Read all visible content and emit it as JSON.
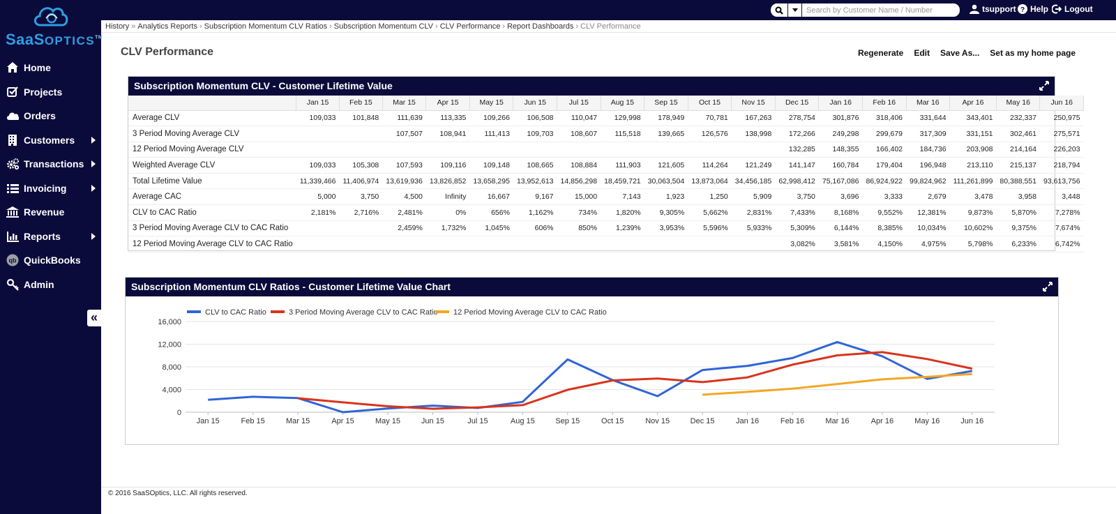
{
  "brand": {
    "name_big": "SaaS",
    "name_small": "OPTICS",
    "tm": "TM"
  },
  "sidebar": {
    "items": [
      {
        "label": "Home",
        "icon": "home-icon",
        "arrow": false
      },
      {
        "label": "Projects",
        "icon": "checkbox-icon",
        "arrow": false
      },
      {
        "label": "Orders",
        "icon": "cloud-icon",
        "arrow": false
      },
      {
        "label": "Customers",
        "icon": "building-icon",
        "arrow": true
      },
      {
        "label": "Transactions",
        "icon": "gears-icon",
        "arrow": true
      },
      {
        "label": "Invoicing",
        "icon": "list-icon",
        "arrow": true
      },
      {
        "label": "Revenue",
        "icon": "bank-icon",
        "arrow": false
      },
      {
        "label": "Reports",
        "icon": "bar-chart-icon",
        "arrow": true
      },
      {
        "label": "QuickBooks",
        "icon": "quickbooks-icon",
        "arrow": false
      },
      {
        "label": "Admin",
        "icon": "key-icon",
        "arrow": false
      }
    ],
    "collapse_glyph": "«"
  },
  "topbar": {
    "search_placeholder": "Search by Customer Name / Number",
    "user": "tsupport",
    "help": "Help",
    "logout": "Logout"
  },
  "breadcrumb": {
    "items": [
      "History",
      "Analytics Reports",
      "Subscription Momentum CLV Ratios",
      "Subscription Momentum CLV",
      "CLV Performance",
      "Report Dashboards"
    ],
    "current": "CLV Performance"
  },
  "page": {
    "title": "CLV Performance",
    "actions": [
      "Regenerate",
      "Edit",
      "Save As...",
      "Set as my home page"
    ]
  },
  "table_panel": {
    "title": "Subscription Momentum CLV - Customer Lifetime Value",
    "columns": [
      "Jan 15",
      "Feb 15",
      "Mar 15",
      "Apr 15",
      "May 15",
      "Jun 15",
      "Jul 15",
      "Aug 15",
      "Sep 15",
      "Oct 15",
      "Nov 15",
      "Dec 15",
      "Jan 16",
      "Feb 16",
      "Mar 16",
      "Apr 16",
      "May 16",
      "Jun 16"
    ],
    "rows": [
      {
        "label": "Average CLV",
        "values": [
          "109,033",
          "101,848",
          "111,639",
          "113,335",
          "109,266",
          "106,508",
          "110,047",
          "129,998",
          "178,949",
          "70,781",
          "167,263",
          "278,754",
          "301,876",
          "318,406",
          "331,644",
          "343,401",
          "232,337",
          "250,975"
        ]
      },
      {
        "label": "3 Period Moving Average CLV",
        "values": [
          "",
          "",
          "107,507",
          "108,941",
          "111,413",
          "109,703",
          "108,607",
          "115,518",
          "139,665",
          "126,576",
          "138,998",
          "172,266",
          "249,298",
          "299,679",
          "317,309",
          "331,151",
          "302,461",
          "275,571"
        ]
      },
      {
        "label": "12 Period Moving Average CLV",
        "values": [
          "",
          "",
          "",
          "",
          "",
          "",
          "",
          "",
          "",
          "",
          "",
          "132,285",
          "148,355",
          "166,402",
          "184,736",
          "203,908",
          "214,164",
          "226,203"
        ]
      },
      {
        "label": "Weighted Average CLV",
        "values": [
          "109,033",
          "105,308",
          "107,593",
          "109,116",
          "109,148",
          "108,665",
          "108,884",
          "111,903",
          "121,605",
          "114,264",
          "121,249",
          "141,147",
          "160,784",
          "179,404",
          "196,948",
          "213,110",
          "215,137",
          "218,794"
        ]
      },
      {
        "label": "Total Lifetime Value",
        "values": [
          "11,339,466",
          "11,406,974",
          "13,619,936",
          "13,826,852",
          "13,658,295",
          "13,952,613",
          "14,856,298",
          "18,459,721",
          "30,063,504",
          "13,873,064",
          "34,456,185",
          "62,998,412",
          "75,167,086",
          "86,924,922",
          "99,824,962",
          "111,261,899",
          "80,388,551",
          "93,613,756"
        ]
      },
      {
        "label": "Average CAC",
        "values": [
          "5,000",
          "3,750",
          "4,500",
          "Infinity",
          "16,667",
          "9,167",
          "15,000",
          "7,143",
          "1,923",
          "1,250",
          "5,909",
          "3,750",
          "3,696",
          "3,333",
          "2,679",
          "3,478",
          "3,958",
          "3,448"
        ]
      },
      {
        "label": "CLV to CAC Ratio",
        "values": [
          "2,181%",
          "2,716%",
          "2,481%",
          "0%",
          "656%",
          "1,162%",
          "734%",
          "1,820%",
          "9,305%",
          "5,662%",
          "2,831%",
          "7,433%",
          "8,168%",
          "9,552%",
          "12,381%",
          "9,873%",
          "5,870%",
          "7,278%"
        ]
      },
      {
        "label": "3 Period Moving Average CLV to CAC Ratio",
        "values": [
          "",
          "",
          "2,459%",
          "1,732%",
          "1,045%",
          "606%",
          "850%",
          "1,239%",
          "3,953%",
          "5,596%",
          "5,933%",
          "5,309%",
          "6,144%",
          "8,385%",
          "10,034%",
          "10,602%",
          "9,375%",
          "7,674%"
        ]
      },
      {
        "label": "12 Period Moving Average CLV to CAC Ratio",
        "values": [
          "",
          "",
          "",
          "",
          "",
          "",
          "",
          "",
          "",
          "",
          "",
          "3,082%",
          "3,581%",
          "4,150%",
          "4,975%",
          "5,798%",
          "6,233%",
          "6,742%"
        ]
      }
    ]
  },
  "chart_panel": {
    "title": "Subscription Momentum CLV Ratios - Customer Lifetime Value Chart"
  },
  "chart_data": {
    "type": "line",
    "categories": [
      "Jan 15",
      "Feb 15",
      "Mar 15",
      "Apr 15",
      "May 15",
      "Jun 15",
      "Jul 15",
      "Aug 15",
      "Sep 15",
      "Oct 15",
      "Nov 15",
      "Dec 15",
      "Jan 16",
      "Feb 16",
      "Mar 16",
      "Apr 16",
      "May 16",
      "Jun 16"
    ],
    "ylim": [
      0,
      16000
    ],
    "yticks": [
      0,
      4000,
      8000,
      12000,
      16000
    ],
    "ytick_labels": [
      "0",
      "4,000",
      "8,000",
      "12,000",
      "16,000"
    ],
    "grid": true,
    "legend": "top-left",
    "series": [
      {
        "name": "CLV to CAC Ratio",
        "color": "#2f64d6",
        "values": [
          2181,
          2716,
          2481,
          0,
          656,
          1162,
          734,
          1820,
          9305,
          5662,
          2831,
          7433,
          8168,
          9552,
          12381,
          9873,
          5870,
          7278
        ]
      },
      {
        "name": "3 Period Moving Average CLV to CAC Ratio",
        "color": "#d9331c",
        "values": [
          null,
          null,
          2459,
          1732,
          1045,
          606,
          850,
          1239,
          3953,
          5596,
          5933,
          5309,
          6144,
          8385,
          10034,
          10602,
          9375,
          7674
        ]
      },
      {
        "name": "12 Period Moving Average CLV to CAC Ratio",
        "color": "#f5a623",
        "values": [
          null,
          null,
          null,
          null,
          null,
          null,
          null,
          null,
          null,
          null,
          null,
          3082,
          3581,
          4150,
          4975,
          5798,
          6233,
          6742
        ]
      }
    ]
  },
  "footer": {
    "text": "© 2016 SaaSOptics, LLC. All rights reserved."
  }
}
